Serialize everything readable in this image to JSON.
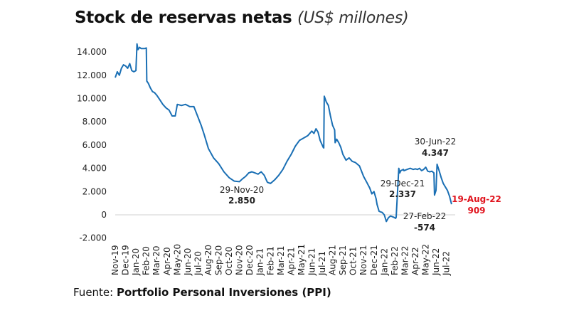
{
  "title": {
    "main": "Stock de reservas netas",
    "unit": "(US$ millones)"
  },
  "source": {
    "prefix": "Fuente:",
    "name": "Portfolio Personal Inversiones (PPI)"
  },
  "colors": {
    "line": "#1a6fb4",
    "highlight": "#e0141e",
    "text": "#222222"
  },
  "chart_data": {
    "type": "line",
    "title": "Stock de reservas netas (US$ millones)",
    "xlabel": "",
    "ylabel": "",
    "ylim": [
      -2000,
      15000
    ],
    "yticks": [
      -2000,
      0,
      2000,
      4000,
      6000,
      8000,
      10000,
      12000,
      14000
    ],
    "ytick_labels": [
      "-2.000",
      "0",
      "2.000",
      "4.000",
      "6.000",
      "8.000",
      "10.000",
      "12.000",
      "14.000"
    ],
    "xlim": [
      0,
      33.6
    ],
    "xtick_labels": [
      "Nov-19",
      "Dec-19",
      "Jan-20",
      "Feb-20",
      "Mar-20",
      "Apr-20",
      "May-20",
      "Jun-20",
      "Jul-20",
      "Aug-20",
      "Sep-20",
      "Oct-20",
      "Nov-20",
      "Dec-20",
      "Jan-21",
      "Feb-21",
      "Mar-21",
      "Apr-21",
      "May-21",
      "Jun-21",
      "Jul-21",
      "Aug-21",
      "Sep-21",
      "Oct-21",
      "Nov-21",
      "Dec-21",
      "Jan-22",
      "Feb-22",
      "Mar-22",
      "Apr-22",
      "May-22",
      "Jun-22",
      "Jul-22"
    ],
    "series": [
      {
        "name": "Reservas netas",
        "x": [
          0,
          0.2,
          0.4,
          0.6,
          0.8,
          1.0,
          1.2,
          1.4,
          1.6,
          1.8,
          2.0,
          2.1,
          2.2,
          2.35,
          2.5,
          2.7,
          2.85,
          3.0,
          3.05,
          3.2,
          3.4,
          3.6,
          3.8,
          4.0,
          4.3,
          4.6,
          4.9,
          5.2,
          5.5,
          5.8,
          6.0,
          6.4,
          6.8,
          7.2,
          7.6,
          8.0,
          8.3,
          8.6,
          9.0,
          9.5,
          10.0,
          10.5,
          11.0,
          11.5,
          12.0,
          12.3,
          12.6,
          12.9,
          13.2,
          13.5,
          13.8,
          14.1,
          14.4,
          14.7,
          15.0,
          15.4,
          15.8,
          16.2,
          16.6,
          17.0,
          17.4,
          17.8,
          18.2,
          18.6,
          19.0,
          19.2,
          19.4,
          19.6,
          19.8,
          20.0,
          20.1,
          20.15,
          20.2,
          20.4,
          20.6,
          20.8,
          21.0,
          21.2,
          21.25,
          21.4,
          21.6,
          21.8,
          22.0,
          22.3,
          22.6,
          22.9,
          23.2,
          23.6,
          24.0,
          24.3,
          24.6,
          24.8,
          25.0,
          25.2,
          25.3,
          25.5,
          25.8,
          26.0,
          26.2,
          26.4,
          26.6,
          26.9,
          27.1,
          27.15,
          27.4,
          27.5,
          27.6,
          27.85,
          27.9,
          28.2,
          28.5,
          28.8,
          29.0,
          29.2,
          29.4,
          29.6,
          29.8,
          30.0,
          30.2,
          30.4,
          30.6,
          30.8,
          30.85,
          31.0,
          31.1,
          31.3,
          31.5,
          31.7,
          31.9,
          32.1,
          32.3,
          32.5
        ],
        "values": [
          11800,
          12300,
          12000,
          12600,
          12900,
          12800,
          12600,
          13000,
          12400,
          12300,
          12400,
          14700,
          14200,
          14400,
          14300,
          14300,
          14300,
          14350,
          11500,
          11300,
          10900,
          10600,
          10500,
          10300,
          9900,
          9500,
          9200,
          9000,
          8500,
          8500,
          9500,
          9400,
          9500,
          9300,
          9300,
          8400,
          7700,
          6900,
          5700,
          4900,
          4400,
          3700,
          3200,
          2900,
          2850,
          3100,
          3300,
          3600,
          3700,
          3600,
          3500,
          3700,
          3400,
          2800,
          2700,
          3000,
          3400,
          3900,
          4600,
          5200,
          5900,
          6400,
          6600,
          6800,
          7200,
          7000,
          7400,
          7100,
          6400,
          6000,
          5800,
          5750,
          10200,
          9700,
          9400,
          8500,
          7700,
          7300,
          6200,
          6500,
          6200,
          5800,
          5200,
          4700,
          4900,
          4600,
          4500,
          4200,
          3300,
          2800,
          2300,
          1800,
          2000,
          1400,
          900,
          300,
          200,
          0,
          -574,
          -250,
          -100,
          -200,
          -300,
          -200,
          4000,
          3600,
          3800,
          3900,
          3800,
          3900,
          4000,
          3900,
          3950,
          3900,
          4000,
          3800,
          3900,
          4100,
          3750,
          3700,
          3750,
          3600,
          1700,
          2100,
          4347,
          3800,
          3200,
          2700,
          2400,
          2100,
          1600,
          909
        ]
      }
    ],
    "annotations": [
      {
        "date": "29-Nov-20",
        "value_label": "2.850",
        "value": 2850,
        "highlight": false
      },
      {
        "date": "29-Dec-21",
        "value_label": "2.337",
        "value": 2337,
        "highlight": false
      },
      {
        "date": "27-Feb-22",
        "value_label": "-574",
        "value": -574,
        "highlight": false
      },
      {
        "date": "30-Jun-22",
        "value_label": "4.347",
        "value": 4347,
        "highlight": false
      },
      {
        "date": "19-Aug-22",
        "value_label": "909",
        "value": 909,
        "highlight": true
      }
    ]
  }
}
